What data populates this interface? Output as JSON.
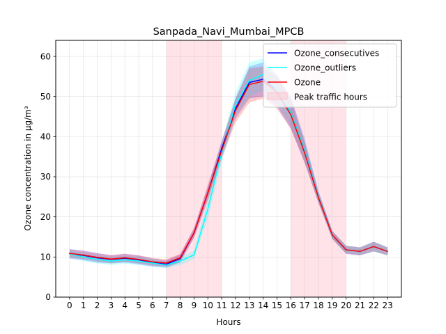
{
  "chart_data": {
    "type": "line",
    "title": "Sanpada_Navi_Mumbai_MPCB",
    "xlabel": "Hours",
    "ylabel": "Ozone concentration in µg/m³",
    "x": [
      0,
      1,
      2,
      3,
      4,
      5,
      6,
      7,
      8,
      9,
      10,
      11,
      12,
      13,
      14,
      15,
      16,
      17,
      18,
      19,
      20,
      21,
      22,
      23
    ],
    "xlim": [
      -1,
      24
    ],
    "ylim": [
      0,
      64
    ],
    "yticks": [
      0,
      10,
      20,
      30,
      40,
      50,
      60
    ],
    "grid": true,
    "legend_position": "top-right",
    "series": [
      {
        "name": "Ozone_consecutives",
        "color": "#0000ff",
        "values": [
          10.8,
          10.4,
          9.8,
          9.4,
          9.7,
          9.3,
          8.6,
          8.2,
          9.6,
          16.0,
          26.0,
          37.0,
          47.0,
          53.5,
          54.3,
          51.5,
          46.0,
          36.5,
          25.0,
          15.5,
          11.8,
          11.4,
          12.6,
          11.4
        ],
        "band_low": [
          9.6,
          9.2,
          8.6,
          8.4,
          8.6,
          8.2,
          7.6,
          7.4,
          8.6,
          14.8,
          24.5,
          35.0,
          44.5,
          49.5,
          50.0,
          47.5,
          42.0,
          33.5,
          23.5,
          14.5,
          10.8,
          10.4,
          11.4,
          10.4
        ],
        "band_high": [
          12.0,
          11.6,
          11.0,
          10.4,
          10.8,
          10.4,
          9.6,
          9.2,
          10.6,
          17.2,
          27.5,
          39.0,
          49.5,
          57.5,
          58.5,
          55.5,
          50.0,
          39.5,
          26.5,
          16.5,
          12.8,
          12.4,
          13.8,
          12.4
        ]
      },
      {
        "name": "Ozone_outliers",
        "color": "#00ffff",
        "values": [
          10.8,
          10.0,
          9.4,
          9.0,
          9.3,
          9.0,
          8.5,
          8.0,
          9.0,
          10.5,
          22.0,
          36.0,
          48.0,
          54.0,
          55.5,
          51.5,
          46.0,
          36.5,
          25.0,
          15.5,
          11.8,
          11.4,
          12.6,
          11.4
        ],
        "band_low": [
          9.8,
          9.0,
          8.4,
          8.0,
          8.3,
          8.0,
          7.6,
          7.2,
          8.0,
          9.5,
          19.5,
          33.5,
          45.5,
          50.0,
          51.5,
          48.0,
          43.0,
          34.0,
          23.5,
          14.5,
          10.8,
          10.4,
          11.4,
          10.4
        ],
        "band_high": [
          11.8,
          11.0,
          10.4,
          10.0,
          10.3,
          10.0,
          9.4,
          8.8,
          10.0,
          11.5,
          24.5,
          38.5,
          51.0,
          58.5,
          59.5,
          55.0,
          49.0,
          39.0,
          26.5,
          16.5,
          12.8,
          12.4,
          13.8,
          12.4
        ]
      },
      {
        "name": "Ozone",
        "color": "#ff0000",
        "values": [
          10.9,
          10.5,
          9.9,
          9.5,
          9.8,
          9.4,
          8.8,
          8.5,
          9.8,
          16.0,
          26.0,
          36.5,
          46.5,
          53.0,
          53.8,
          51.0,
          45.5,
          36.0,
          24.8,
          15.5,
          11.8,
          11.4,
          12.6,
          11.4
        ],
        "band_low": [
          9.9,
          9.5,
          8.9,
          8.5,
          8.8,
          8.4,
          7.9,
          7.6,
          8.8,
          14.8,
          24.0,
          34.5,
          43.5,
          48.5,
          49.5,
          47.0,
          42.0,
          33.5,
          23.5,
          14.5,
          10.8,
          10.4,
          11.4,
          10.4
        ],
        "band_high": [
          11.9,
          11.5,
          10.9,
          10.5,
          10.8,
          10.4,
          9.8,
          9.4,
          10.8,
          17.2,
          28.0,
          38.5,
          49.5,
          57.0,
          57.5,
          55.0,
          49.5,
          38.5,
          26.0,
          16.5,
          12.8,
          12.4,
          13.8,
          12.4
        ]
      }
    ],
    "shaded_regions": [
      {
        "name": "Peak traffic hours",
        "x_start": 7,
        "x_end": 11,
        "color": "#ffc0cb"
      },
      {
        "name": "Peak traffic hours",
        "x_start": 16,
        "x_end": 20,
        "color": "#ffc0cb"
      }
    ],
    "legend": [
      "Ozone_consecutives",
      "Ozone_outliers",
      "Ozone",
      "Peak traffic hours"
    ]
  }
}
